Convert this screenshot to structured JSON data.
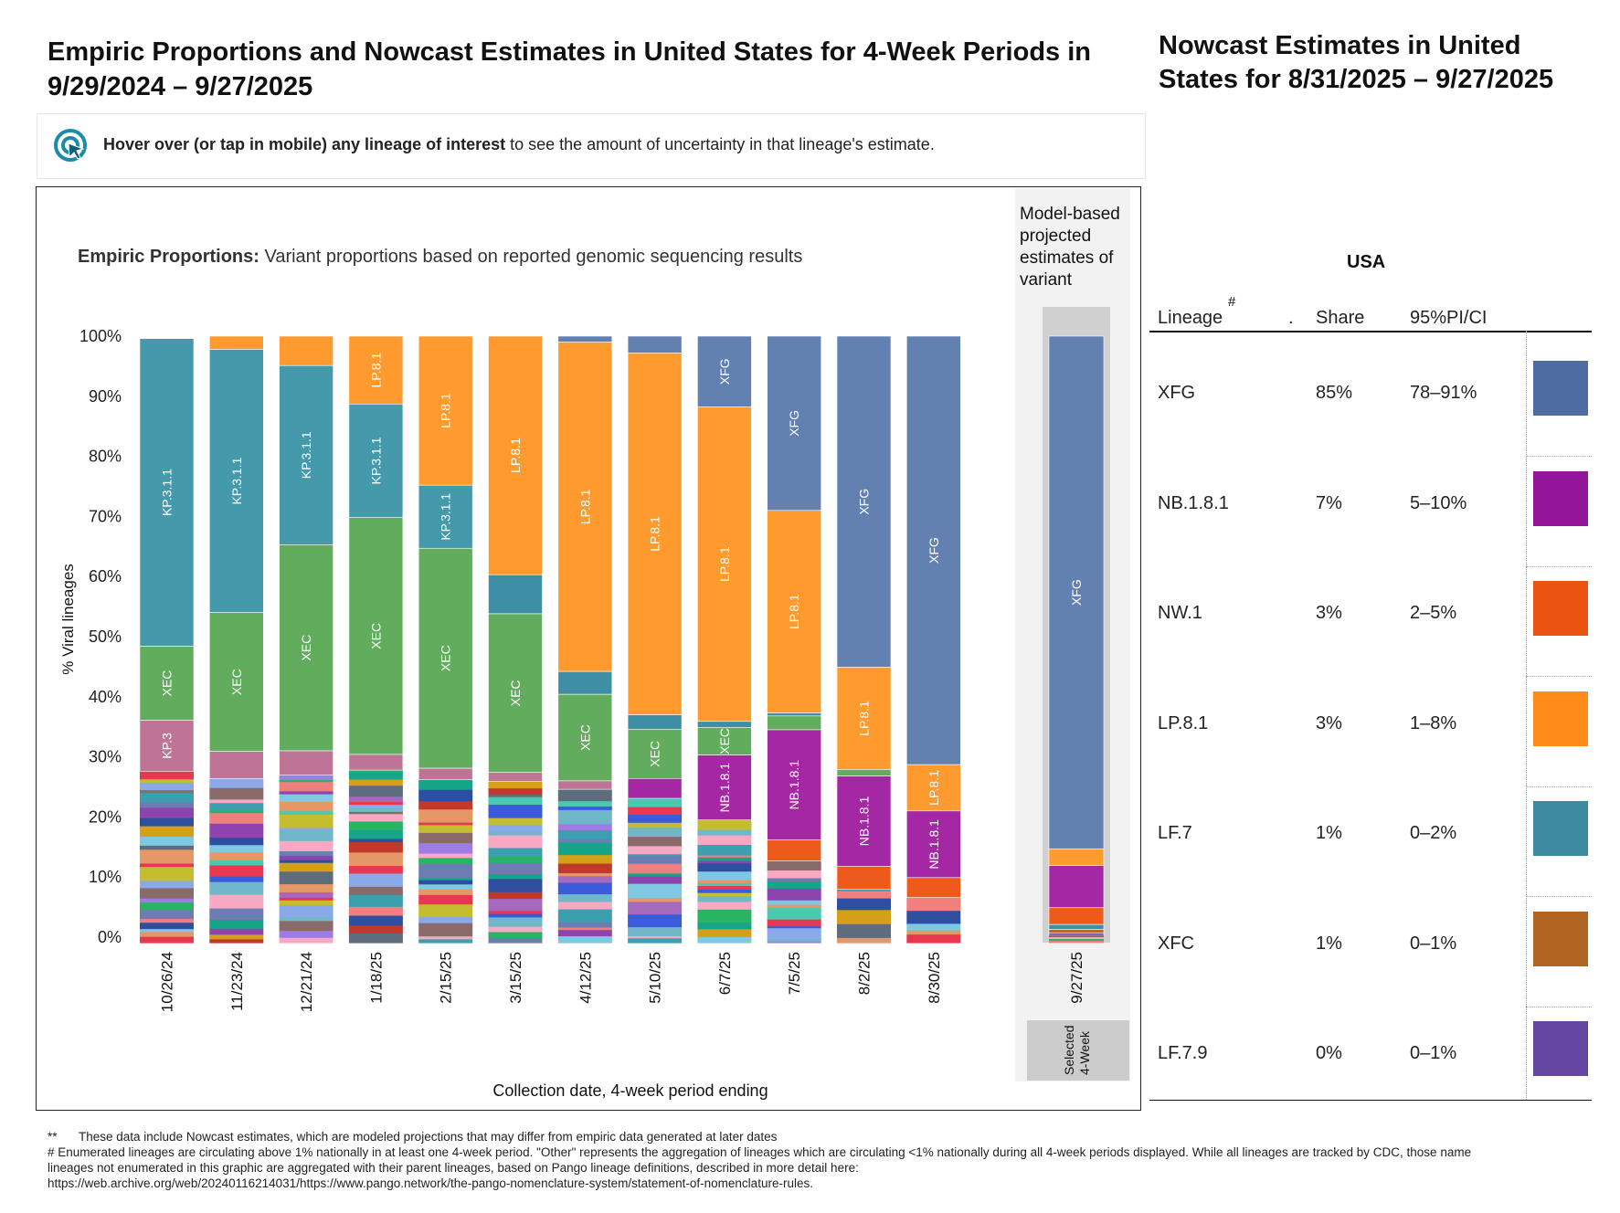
{
  "title": "Empiric Proportions and Nowcast Estimates in United States for 4-Week Periods in 9/29/2024 – 9/27/2025",
  "right_title": "Nowcast Estimates in United States for 8/31/2025 – 9/27/2025",
  "hover_hint": {
    "bold": "Hover over (or tap in mobile) any lineage of interest",
    "rest": " to see the amount of uncertainty in that lineage's estimate."
  },
  "empiric_subtitle": {
    "bold": "Empiric Proportions:",
    "rest": " Variant proportions based on reported genomic sequencing results"
  },
  "projection_caption": "Model-based projected estimates of variant",
  "selected_label": [
    "Selected",
    "4-Week"
  ],
  "colors": {
    "XFG": "#6281B0",
    "LP.8.1": "#FF9A2E",
    "XEC": "#62AC5E",
    "KP.3.1.1": "#4499AB",
    "KP.3": "#BE7595",
    "NB.1.8.1": "#A428A4",
    "NW.1": "#EE5A1C",
    "LF.7": "#3E8FA5",
    "XFC": "#B46B2A",
    "LF.7.9": "#6A4BA5"
  },
  "chart_data": {
    "type": "bar",
    "stacked": true,
    "title": "Empiric Proportions: Variant proportions based on reported genomic sequencing results",
    "xlabel": "Collection date, 4-week period ending",
    "ylabel": "% Viral lineages",
    "ylim": [
      0,
      100
    ],
    "yticks": [
      "0%",
      "10%",
      "20%",
      "30%",
      "40%",
      "50%",
      "60%",
      "70%",
      "80%",
      "90%",
      "100%"
    ],
    "categories": [
      "10/26/24",
      "11/23/24",
      "12/21/24",
      "1/18/25",
      "2/15/25",
      "3/15/25",
      "4/12/25",
      "5/10/25",
      "6/7/25",
      "7/5/25",
      "8/2/25",
      "8/30/25"
    ],
    "projected_category": "9/27/25",
    "other_palette": [
      "#E8384F",
      "#3B5BDB",
      "#C4BD2F",
      "#8AA9E8",
      "#6FB7C9",
      "#8B6A6A",
      "#9F7BE8",
      "#F7A8C2",
      "#3A9FAF",
      "#28B463",
      "#6E7CB4",
      "#F08080",
      "#17A589",
      "#8E44AD",
      "#2E4FA0",
      "#D4A017",
      "#7EC8E3",
      "#C0392B",
      "#5D6D7E",
      "#E59866",
      "#A569BD",
      "#48C9B0"
    ],
    "bars": [
      {
        "cat": "10/26/24",
        "top": [
          {
            "name": "KP.3.1.1",
            "v": 51.2,
            "label": "KP.3.1.1"
          },
          {
            "name": "XEC",
            "v": 12.3,
            "label": "XEC"
          },
          {
            "name": "KP.3",
            "v": 8.5,
            "label": "KP.3"
          }
        ],
        "other_top": 99.6
      },
      {
        "cat": "11/23/24",
        "top": [
          {
            "name": "LP.8.1",
            "v": 2.2
          },
          {
            "name": "KP.3.1.1",
            "v": 43.8,
            "label": "KP.3.1.1"
          },
          {
            "name": "XEC",
            "v": 23.1,
            "label": "XEC"
          },
          {
            "name": "KP.3",
            "v": 4.5
          }
        ],
        "other_top": 100
      },
      {
        "cat": "12/21/24",
        "top": [
          {
            "name": "LP.8.1",
            "v": 4.9
          },
          {
            "name": "KP.3.1.1",
            "v": 29.8,
            "label": "KP.3.1.1"
          },
          {
            "name": "XEC",
            "v": 34.3,
            "label": "XEC"
          },
          {
            "name": "KP.3",
            "v": 4.0
          }
        ],
        "other_top": 100
      },
      {
        "cat": "1/18/25",
        "top": [
          {
            "name": "LP.8.1",
            "v": 11.3,
            "label": "LP.8.1"
          },
          {
            "name": "KP.3.1.1",
            "v": 18.9,
            "label": "KP.3.1.1"
          },
          {
            "name": "XEC",
            "v": 39.4,
            "label": "XEC"
          },
          {
            "name": "KP.3",
            "v": 2.6
          }
        ],
        "other_top": 100
      },
      {
        "cat": "2/15/25",
        "top": [
          {
            "name": "LP.8.1",
            "v": 24.8,
            "label": "LP.8.1"
          },
          {
            "name": "KP.3.1.1",
            "v": 10.5,
            "label": "KP.3.1.1"
          },
          {
            "name": "XEC",
            "v": 36.6,
            "label": "XEC"
          },
          {
            "name": "KP.3",
            "v": 1.9
          }
        ],
        "other_top": 100
      },
      {
        "cat": "3/15/25",
        "top": [
          {
            "name": "LP.8.1",
            "v": 39.7,
            "label": "LP.8.1"
          },
          {
            "name": "LF.7",
            "v": 6.5
          },
          {
            "name": "XEC",
            "v": 26.4,
            "label": "XEC"
          },
          {
            "name": "KP.3",
            "v": 1.5
          }
        ],
        "other_top": 100
      },
      {
        "cat": "4/12/25",
        "top": [
          {
            "name": "XFG",
            "v": 1.0
          },
          {
            "name": "LP.8.1",
            "v": 54.8,
            "label": "LP.8.1"
          },
          {
            "name": "LF.7",
            "v": 3.8
          },
          {
            "name": "XEC",
            "v": 14.4,
            "label": "XEC"
          },
          {
            "name": "KP.3",
            "v": 1.4
          }
        ],
        "other_top": 100
      },
      {
        "cat": "5/10/25",
        "top": [
          {
            "name": "XFG",
            "v": 2.8
          },
          {
            "name": "LP.8.1",
            "v": 60.2,
            "label": "LP.8.1"
          },
          {
            "name": "LF.7",
            "v": 2.4
          },
          {
            "name": "XEC",
            "v": 8.2,
            "label": "XEC"
          },
          {
            "name": "NB.1.8.1",
            "v": 3.3
          }
        ],
        "other_top": 100
      },
      {
        "cat": "6/7/25",
        "top": [
          {
            "name": "XFG",
            "v": 11.8,
            "label": "XFG"
          },
          {
            "name": "LP.8.1",
            "v": 52.3,
            "label": "LP.8.1"
          },
          {
            "name": "LF.7",
            "v": 1.0
          },
          {
            "name": "XEC",
            "v": 4.6,
            "label": "XEC"
          },
          {
            "name": "NB.1.8.1",
            "v": 10.8,
            "label": "NB.1.8.1"
          }
        ],
        "other_top": 100
      },
      {
        "cat": "7/5/25",
        "top": [
          {
            "name": "XFG",
            "v": 29.0,
            "label": "XFG"
          },
          {
            "name": "LP.8.1",
            "v": 33.7,
            "label": "LP.8.1"
          },
          {
            "name": "LF.7",
            "v": 0.5
          },
          {
            "name": "XEC",
            "v": 2.3
          },
          {
            "name": "NB.1.8.1",
            "v": 18.3,
            "label": "NB.1.8.1"
          },
          {
            "name": "NW.1",
            "v": 3.5
          }
        ],
        "other_top": 100
      },
      {
        "cat": "8/2/25",
        "top": [
          {
            "name": "XFG",
            "v": 55.1,
            "label": "XFG"
          },
          {
            "name": "LP.8.1",
            "v": 17.0,
            "label": "LP.8.1"
          },
          {
            "name": "XEC",
            "v": 1.1
          },
          {
            "name": "NB.1.8.1",
            "v": 15.0,
            "label": "NB.1.8.1"
          },
          {
            "name": "NW.1",
            "v": 3.8
          }
        ],
        "other_top": 100
      },
      {
        "cat": "8/30/25",
        "top": [
          {
            "name": "XFG",
            "v": 71.3,
            "label": "XFG"
          },
          {
            "name": "LP.8.1",
            "v": 7.7,
            "label": "LP.8.1"
          },
          {
            "name": "NB.1.8.1",
            "v": 11.1,
            "label": "NB.1.8.1"
          },
          {
            "name": "NW.1",
            "v": 3.3
          }
        ],
        "other_top": 100
      }
    ],
    "projected_bar": [
      {
        "name": "XFG",
        "v": 85.3,
        "label": "XFG"
      },
      {
        "name": "LP.8.1",
        "v": 2.8
      },
      {
        "name": "NB.1.8.1",
        "v": 7.0
      },
      {
        "name": "NW.1",
        "v": 2.8
      },
      {
        "name": "LF.7",
        "v": 0.8
      },
      {
        "name": "XFC",
        "v": 0.6
      },
      {
        "name": "LF.7.9",
        "v": 0.4
      }
    ]
  },
  "table": {
    "region": "USA",
    "headers": {
      "lineage": "Lineage",
      "hash": "#",
      "dot": ".",
      "share": "Share",
      "ci": "95%PI/CI"
    },
    "rows": [
      {
        "lineage": "XFG",
        "share": "85%",
        "ci": "78–91%",
        "color": "#4E6CA2"
      },
      {
        "lineage": "NB.1.8.1",
        "share": "7%",
        "ci": "5–10%",
        "color": "#93169B"
      },
      {
        "lineage": "NW.1",
        "share": "3%",
        "ci": "2–5%",
        "color": "#EA5410"
      },
      {
        "lineage": "LP.8.1",
        "share": "3%",
        "ci": "1–8%",
        "color": "#FF8C19"
      },
      {
        "lineage": "LF.7",
        "share": "1%",
        "ci": "0–2%",
        "color": "#3D8BA0"
      },
      {
        "lineage": "XFC",
        "share": "1%",
        "ci": "0–1%",
        "color": "#B26422"
      },
      {
        "lineage": "LF.7.9",
        "share": "0%",
        "ci": "0–1%",
        "color": "#6547A3"
      }
    ]
  },
  "footnotes": {
    "star_mark": "**",
    "star_text": "These data include Nowcast estimates, which are modeled projections that may differ from empiric data generated at later dates",
    "hash_line1": "# Enumerated lineages are circulating above 1% nationally in at least one 4-week period. \"Other\" represents the aggregation of lineages which are circulating <1% nationally during all 4-week periods displayed.  While all lineages are tracked by CDC, those name",
    "hash_line2": "lineages not enumerated in this graphic are aggregated with their parent lineages, based on Pango lineage definitions, described in more detail here:",
    "hash_line3": "https://web.archive.org/web/20240116214031/https://www.pango.network/the-pango-nomenclature-system/statement-of-nomenclature-rules."
  }
}
